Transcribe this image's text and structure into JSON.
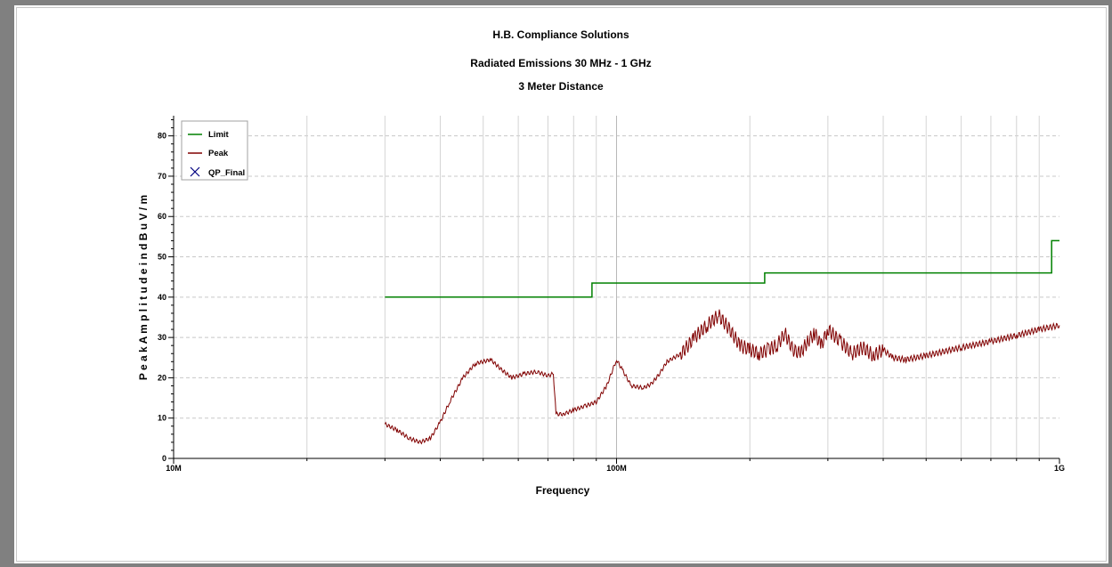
{
  "chart_data": {
    "type": "line",
    "title": "H.B. Compliance Solutions",
    "subtitle": "Radiated Emissions 30 MHz - 1 GHz",
    "subtitle2": "3 Meter Distance",
    "xlabel": "Frequency",
    "ylabel": "P e a k  A m p l i t u d e   i n   d B u V / m",
    "x_scale": "log",
    "xlim_hz": [
      10000000,
      1000000000
    ],
    "ylim": [
      0,
      85
    ],
    "x_tick_labels": [
      {
        "value": 10000000,
        "label": "10M"
      },
      {
        "value": 100000000,
        "label": "100M"
      },
      {
        "value": 1000000000,
        "label": "1G"
      }
    ],
    "y_ticks": [
      0,
      10,
      20,
      30,
      40,
      50,
      60,
      70,
      80
    ],
    "grid": true,
    "legend_position": "top-left",
    "series": [
      {
        "name": "Limit",
        "color": "#008000",
        "style": "step",
        "points": [
          [
            30000000,
            40
          ],
          [
            88000000,
            40
          ],
          [
            88000000,
            43.5
          ],
          [
            216000000,
            43.5
          ],
          [
            216000000,
            46
          ],
          [
            960000000,
            46
          ],
          [
            960000000,
            54
          ],
          [
            1000000000,
            54
          ]
        ]
      },
      {
        "name": "Peak",
        "color": "#800000",
        "points": [
          [
            30000000,
            8.5
          ],
          [
            32000000,
            7
          ],
          [
            34000000,
            5
          ],
          [
            36000000,
            4
          ],
          [
            38000000,
            5
          ],
          [
            40000000,
            9
          ],
          [
            42000000,
            14
          ],
          [
            45000000,
            20
          ],
          [
            48000000,
            23.5
          ],
          [
            52000000,
            24.5
          ],
          [
            55000000,
            22
          ],
          [
            58000000,
            20
          ],
          [
            62000000,
            21
          ],
          [
            66000000,
            21.5
          ],
          [
            70000000,
            20.5
          ],
          [
            72000000,
            21
          ],
          [
            73000000,
            11
          ],
          [
            76000000,
            11
          ],
          [
            80000000,
            12
          ],
          [
            85000000,
            13
          ],
          [
            90000000,
            14
          ],
          [
            95000000,
            18
          ],
          [
            100000000,
            24.5
          ],
          [
            103000000,
            22
          ],
          [
            108000000,
            18
          ],
          [
            115000000,
            17.5
          ],
          [
            120000000,
            18.5
          ],
          [
            125000000,
            21
          ],
          [
            130000000,
            24
          ],
          [
            140000000,
            26
          ],
          [
            150000000,
            30
          ],
          [
            160000000,
            33
          ],
          [
            170000000,
            35.5
          ],
          [
            180000000,
            32
          ],
          [
            190000000,
            28
          ],
          [
            200000000,
            27
          ],
          [
            210000000,
            26
          ],
          [
            220000000,
            27
          ],
          [
            230000000,
            28
          ],
          [
            240000000,
            31
          ],
          [
            250000000,
            27
          ],
          [
            260000000,
            26
          ],
          [
            270000000,
            29
          ],
          [
            280000000,
            31
          ],
          [
            290000000,
            28
          ],
          [
            300000000,
            32
          ],
          [
            320000000,
            29
          ],
          [
            340000000,
            26
          ],
          [
            360000000,
            27.5
          ],
          [
            380000000,
            25.5
          ],
          [
            400000000,
            27
          ],
          [
            420000000,
            25
          ],
          [
            450000000,
            24.5
          ],
          [
            500000000,
            25.5
          ],
          [
            600000000,
            27.5
          ],
          [
            700000000,
            29
          ],
          [
            800000000,
            30.5
          ],
          [
            900000000,
            32
          ],
          [
            1000000000,
            33
          ]
        ]
      },
      {
        "name": "QP_Final",
        "color": "#000080",
        "marker": "X",
        "points": []
      }
    ]
  }
}
